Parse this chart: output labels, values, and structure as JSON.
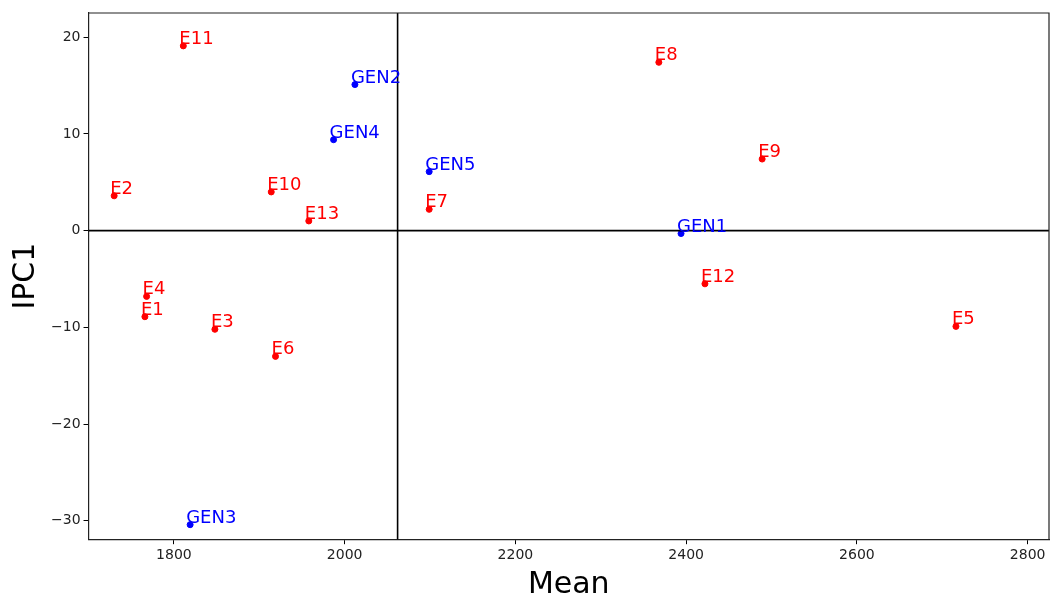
{
  "chart_data": {
    "type": "scatter",
    "xlabel": "Mean",
    "ylabel": "IPC1",
    "xlim": [
      1700,
      2825
    ],
    "ylim": [
      -31.9,
      22.5
    ],
    "xticks": [
      1800,
      2000,
      2200,
      2400,
      2600,
      2800
    ],
    "yticks": [
      -30,
      -20,
      -10,
      0,
      10,
      20
    ],
    "grid": false,
    "legend": false,
    "marker": "circle",
    "series": [
      {
        "color": "#ff0000",
        "x": [
          1811,
          1730,
          1914,
          1958,
          1768,
          1766,
          1848,
          1919,
          2099,
          2368,
          2489,
          2422,
          2716
        ],
        "values": [
          19.1,
          3.6,
          4.0,
          1.0,
          -6.8,
          -8.9,
          -10.2,
          -13.0,
          2.2,
          17.4,
          7.4,
          -5.5,
          -9.9
        ]
      },
      {
        "color": "#0000ff",
        "x": [
          2394,
          2012,
          1819,
          1987,
          2099
        ],
        "values": [
          -0.3,
          15.1,
          -30.4,
          9.4,
          6.1
        ]
      }
    ],
    "annotations": [
      {
        "text": "E11",
        "x": 1811,
        "y": 19.1
      },
      {
        "text": "E2",
        "x": 1730,
        "y": 3.6
      },
      {
        "text": "E10",
        "x": 1914,
        "y": 4.0
      },
      {
        "text": "E13",
        "x": 1958,
        "y": 1.0
      },
      {
        "text": "E4",
        "x": 1768,
        "y": -6.8
      },
      {
        "text": "E1",
        "x": 1766,
        "y": -8.9
      },
      {
        "text": "E3",
        "x": 1848,
        "y": -10.2
      },
      {
        "text": "E6",
        "x": 1919,
        "y": -13.0
      },
      {
        "text": "E7",
        "x": 2099,
        "y": 2.2
      },
      {
        "text": "E8",
        "x": 2368,
        "y": 17.4
      },
      {
        "text": "E9",
        "x": 2489,
        "y": 7.4
      },
      {
        "text": "E12",
        "x": 2422,
        "y": -5.5
      },
      {
        "text": "E5",
        "x": 2716,
        "y": -9.9
      },
      {
        "text": "GEN1",
        "x": 2394,
        "y": -0.3
      },
      {
        "text": "GEN2",
        "x": 2012,
        "y": 15.1
      },
      {
        "text": "GEN3",
        "x": 1819,
        "y": -30.4
      },
      {
        "text": "GEN4",
        "x": 1987,
        "y": 9.4
      },
      {
        "text": "GEN5",
        "x": 2099,
        "y": 6.1
      }
    ],
    "ref_lines": [
      {
        "axis": "x",
        "value": 2062,
        "color": "#000000"
      },
      {
        "axis": "y",
        "value": 0,
        "color": "#000000"
      }
    ]
  }
}
